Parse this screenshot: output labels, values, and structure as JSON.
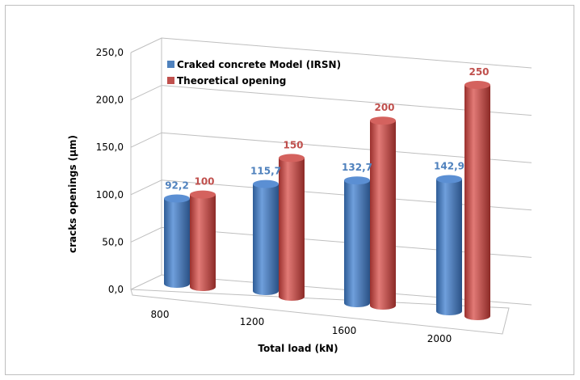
{
  "chart_data": {
    "type": "bar",
    "categories": [
      "800",
      "1200",
      "1600",
      "2000"
    ],
    "series": [
      {
        "name": "Craked concrete Model (IRSN)",
        "values": [
          92.2,
          115.7,
          132.7,
          142.9
        ],
        "labels": [
          "92,2",
          "115,7",
          "132,7",
          "142,9"
        ],
        "color": "#4f81bd"
      },
      {
        "name": "Theoretical opening",
        "values": [
          100,
          150,
          200,
          250
        ],
        "labels": [
          "100",
          "150",
          "200",
          "250"
        ],
        "color": "#c0504d"
      }
    ],
    "xlabel": "Total load (kN)",
    "ylabel": "cracks openings (µm)",
    "ylim": [
      0,
      250
    ],
    "yticks": [
      "0,0",
      "50,0",
      "100,0",
      "150,0",
      "200,0",
      "250,0"
    ],
    "grid": true,
    "legend": "top-left",
    "style": "3d-cylinder"
  }
}
